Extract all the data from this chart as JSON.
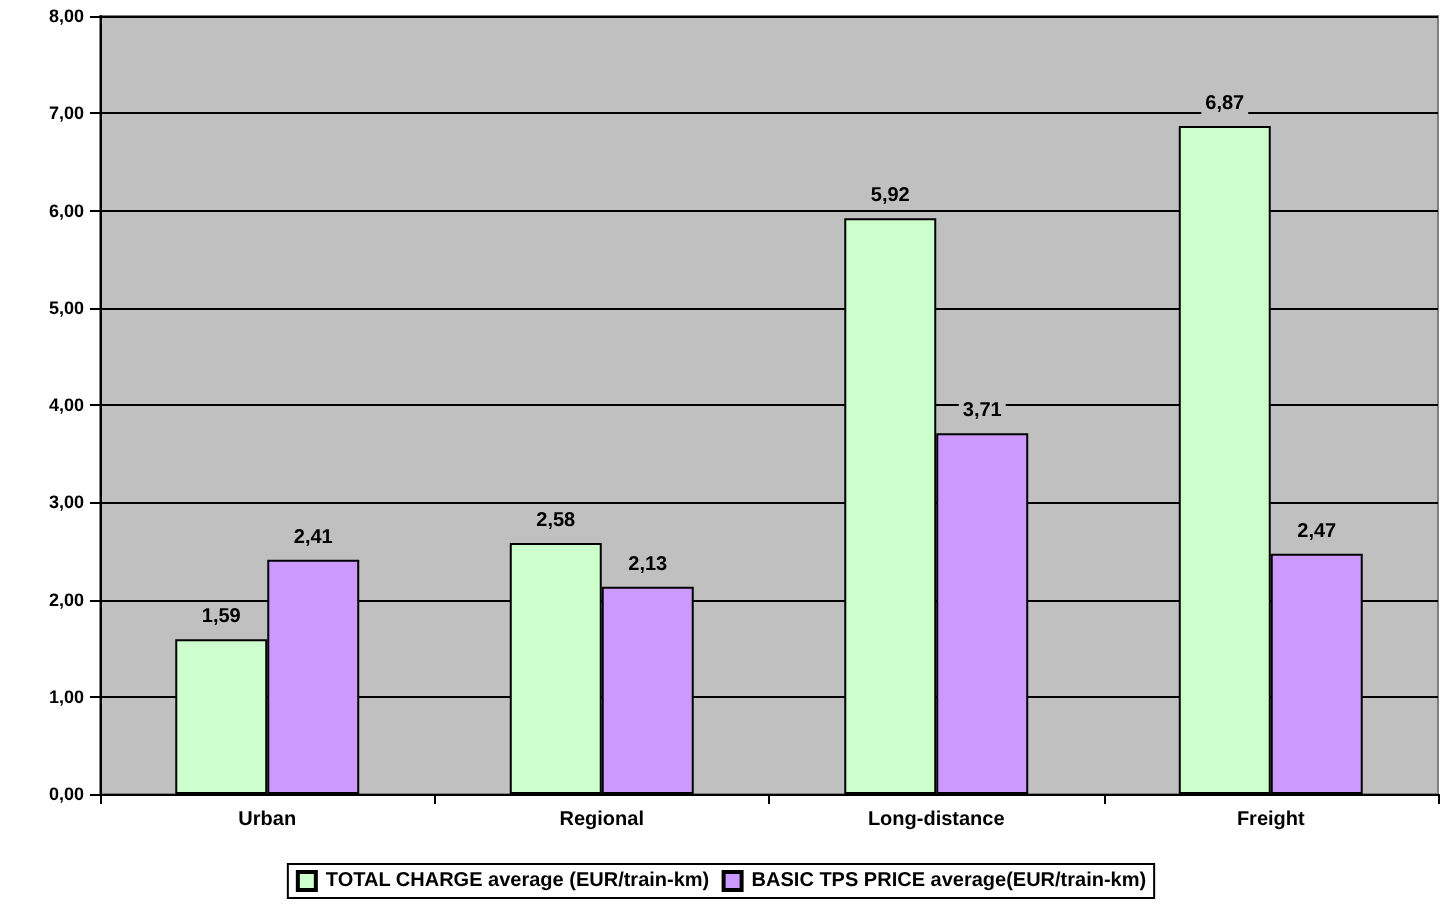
{
  "chart_data": {
    "type": "bar",
    "categories": [
      "Urban",
      "Regional",
      "Long-distance",
      "Freight"
    ],
    "series": [
      {
        "name": "TOTAL CHARGE average (EUR/train-km)",
        "color": "#ccffcc",
        "values": [
          1.59,
          2.58,
          5.92,
          6.87
        ],
        "value_labels": [
          "1,59",
          "2,58",
          "5,92",
          "6,87"
        ]
      },
      {
        "name": "BASIC TPS PRICE average(EUR/train-km)",
        "color": "#cc99ff",
        "values": [
          2.41,
          2.13,
          3.71,
          2.47
        ],
        "value_labels": [
          "2,41",
          "2,13",
          "3,71",
          "2,47"
        ]
      }
    ],
    "ylim": [
      0,
      8
    ],
    "yticks": [
      {
        "value": 0,
        "label": "0,00"
      },
      {
        "value": 1,
        "label": "1,00"
      },
      {
        "value": 2,
        "label": "2,00"
      },
      {
        "value": 3,
        "label": "3,00"
      },
      {
        "value": 4,
        "label": "4,00"
      },
      {
        "value": 5,
        "label": "5,00"
      },
      {
        "value": 6,
        "label": "6,00"
      },
      {
        "value": 7,
        "label": "7,00"
      },
      {
        "value": 8,
        "label": "8,00"
      }
    ],
    "grid": "y",
    "legend": "bottom"
  }
}
